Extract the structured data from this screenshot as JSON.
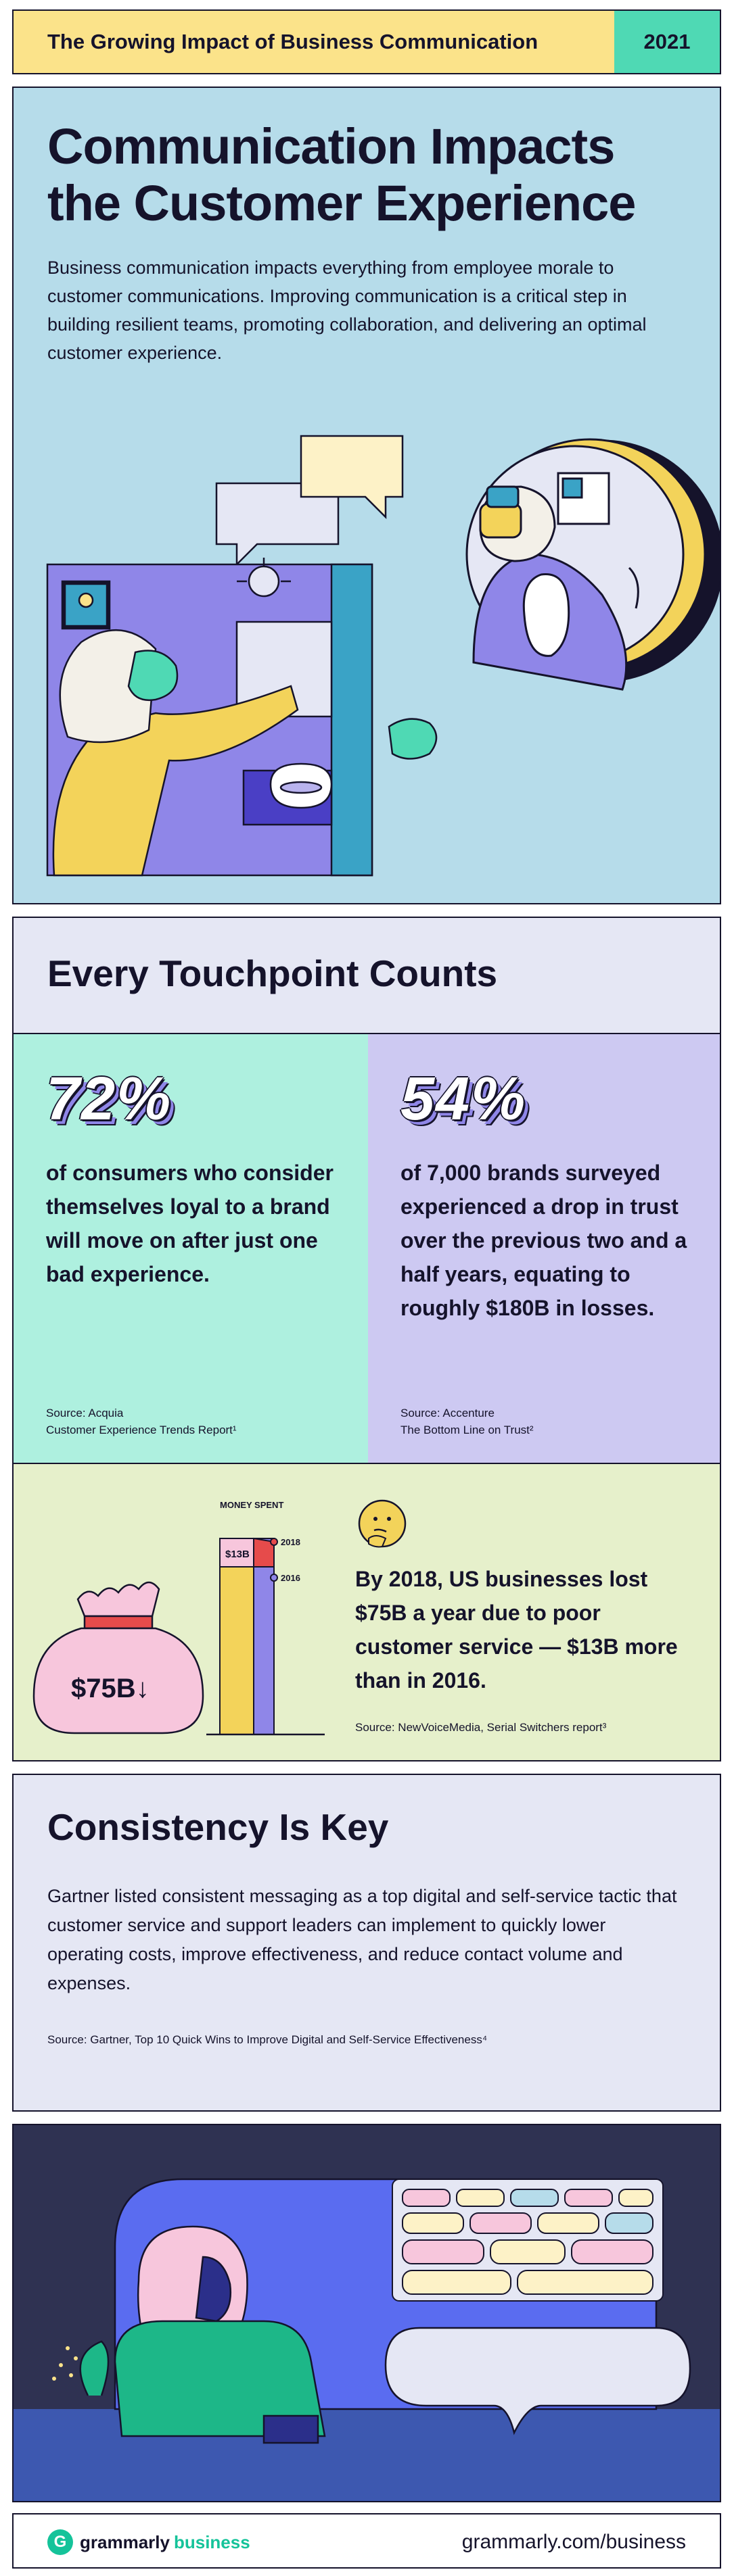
{
  "header": {
    "title": "The Growing Impact of Business Communication",
    "year": "2021"
  },
  "intro": {
    "title_line1": "Communication Impacts",
    "title_line2": "the Customer Experience",
    "body": "Business communication impacts everything from employee morale to customer communications. Improving communication is a critical step in building resilient teams, promoting collaboration, and delivering an optimal customer experience."
  },
  "touchpoints": {
    "title": "Every Touchpoint Counts",
    "stat_a": {
      "value": "72%",
      "text": "of consumers who consider themselves loyal to a brand will move on after just one bad experience.",
      "source_line1": "Source: Acquia",
      "source_line2": "Customer Experience Trends Report¹"
    },
    "stat_b": {
      "value": "54%",
      "text": "of 7,000 brands surveyed experienced a drop in trust over the previous two and a half years, equating to roughly $180B in losses.",
      "source_line1": "Source: Accenture",
      "source_line2": "The Bottom Line on Trust²"
    },
    "money": {
      "chart_label": "MONEY SPENT",
      "bar_value": "$13B",
      "legend_2018": "2018",
      "legend_2016": "2016",
      "bag_label": "$75B↓",
      "text": "By 2018, US businesses lost $75B a year due to poor customer service — $13B more than in 2016.",
      "source": "Source: NewVoiceMedia, Serial Switchers report³"
    }
  },
  "consistency": {
    "title": "Consistency Is Key",
    "body": "Gartner listed consistent messaging as a top digital and self-service tactic that customer service and support leaders can implement to quickly lower operating costs, improve effectiveness, and reduce contact volume and expenses.",
    "source": "Source: Gartner, Top 10 Quick Wins to Improve Digital and Self-Service Effectiveness⁴"
  },
  "footer": {
    "logo_mark": "G",
    "logo_word1": "grammarly",
    "logo_word2": "business",
    "url": "grammarly.com/business"
  },
  "colors": {
    "navy": "#15132b",
    "yellow": "#fbe38a",
    "teal": "#4fd9b4",
    "light_blue": "#b6dcea",
    "lavender": "#cdc9f2",
    "mint": "#aef0df",
    "pale_green": "#e6f0cb",
    "brand_green": "#15c39a"
  }
}
